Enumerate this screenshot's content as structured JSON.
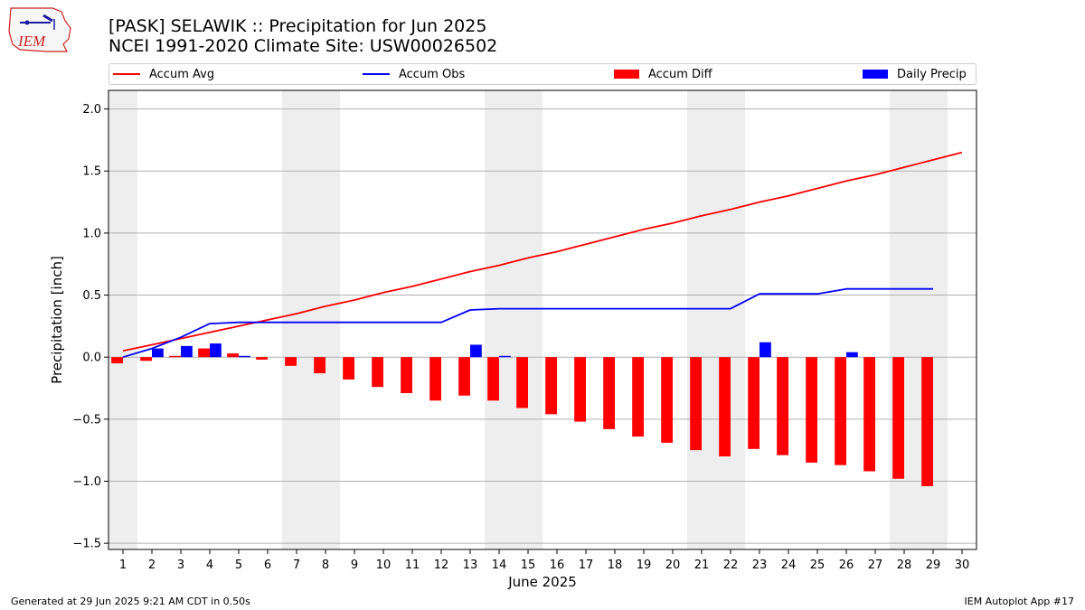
{
  "header": {
    "title_line1": "[PASK] SELAWIK :: Precipitation for Jun 2025",
    "title_line2": "NCEI 1991-2020 Climate Site: USW00026502"
  },
  "logo": {
    "text": "IEM"
  },
  "footer": {
    "left": "Generated at 29 Jun 2025 9:21 AM CDT in 0.50s",
    "right": "IEM Autoplot App #17"
  },
  "colors": {
    "avg": "#ff0000",
    "obs": "#0000ff",
    "diff": "#ff0000",
    "daily": "#0000ff",
    "weekend_shade": "#eeeeee",
    "grid": "#b0b0b0"
  },
  "chart_data": {
    "type": "bar",
    "xlabel": "June 2025",
    "ylabel": "Precipitation [inch]",
    "xlim": [
      0.5,
      30.5
    ],
    "ylim": [
      -1.55,
      2.15
    ],
    "yticks": [
      -1.5,
      -1.0,
      -0.5,
      0.0,
      0.5,
      1.0,
      1.5,
      2.0
    ],
    "ytick_labels": [
      "−1.5",
      "−1.0",
      "−0.5",
      "0.0",
      "0.5",
      "1.0",
      "1.5",
      "2.0"
    ],
    "x": [
      1,
      2,
      3,
      4,
      5,
      6,
      7,
      8,
      9,
      10,
      11,
      12,
      13,
      14,
      15,
      16,
      17,
      18,
      19,
      20,
      21,
      22,
      23,
      24,
      25,
      26,
      27,
      28,
      29,
      30
    ],
    "grid": "horizontal",
    "legend_position": "top",
    "shaded_days": [
      [
        0.5,
        1.5
      ],
      [
        6.5,
        8.5
      ],
      [
        13.5,
        15.5
      ],
      [
        20.5,
        22.5
      ],
      [
        27.5,
        29.5
      ]
    ],
    "series": [
      {
        "name": "Accum Avg",
        "kind": "line",
        "x": [
          1,
          2,
          3,
          4,
          5,
          6,
          7,
          8,
          9,
          10,
          11,
          12,
          13,
          14,
          15,
          16,
          17,
          18,
          19,
          20,
          21,
          22,
          23,
          24,
          25,
          26,
          27,
          28,
          29,
          30
        ],
        "values": [
          0.05,
          0.1,
          0.15,
          0.2,
          0.25,
          0.3,
          0.35,
          0.41,
          0.46,
          0.52,
          0.57,
          0.63,
          0.69,
          0.74,
          0.8,
          0.85,
          0.91,
          0.97,
          1.03,
          1.08,
          1.14,
          1.19,
          1.25,
          1.3,
          1.36,
          1.42,
          1.47,
          1.53,
          1.59,
          1.65
        ]
      },
      {
        "name": "Accum Obs",
        "kind": "line",
        "x": [
          1,
          2,
          3,
          4,
          5,
          6,
          7,
          8,
          9,
          10,
          11,
          12,
          13,
          14,
          15,
          16,
          17,
          18,
          19,
          20,
          21,
          22,
          23,
          24,
          25,
          26,
          27,
          28,
          29
        ],
        "values": [
          0.0,
          0.07,
          0.16,
          0.27,
          0.28,
          0.28,
          0.28,
          0.28,
          0.28,
          0.28,
          0.28,
          0.28,
          0.38,
          0.39,
          0.39,
          0.39,
          0.39,
          0.39,
          0.39,
          0.39,
          0.39,
          0.39,
          0.51,
          0.51,
          0.51,
          0.55,
          0.55,
          0.55,
          0.55
        ]
      },
      {
        "name": "Accum Diff",
        "kind": "bar",
        "x": [
          1,
          2,
          3,
          4,
          5,
          6,
          7,
          8,
          9,
          10,
          11,
          12,
          13,
          14,
          15,
          16,
          17,
          18,
          19,
          20,
          21,
          22,
          23,
          24,
          25,
          26,
          27,
          28,
          29
        ],
        "values": [
          -0.05,
          -0.03,
          0.01,
          0.07,
          0.03,
          -0.02,
          -0.07,
          -0.13,
          -0.18,
          -0.24,
          -0.29,
          -0.35,
          -0.31,
          -0.35,
          -0.41,
          -0.46,
          -0.52,
          -0.58,
          -0.64,
          -0.69,
          -0.75,
          -0.8,
          -0.74,
          -0.79,
          -0.85,
          -0.87,
          -0.92,
          -0.98,
          -1.04
        ]
      },
      {
        "name": "Daily Precip",
        "kind": "bar",
        "x": [
          1,
          2,
          3,
          4,
          5,
          6,
          7,
          8,
          9,
          10,
          11,
          12,
          13,
          14,
          15,
          16,
          17,
          18,
          19,
          20,
          21,
          22,
          23,
          24,
          25,
          26,
          27,
          28,
          29
        ],
        "values": [
          0.0,
          0.07,
          0.09,
          0.11,
          0.01,
          0.0,
          0.0,
          0.0,
          0.0,
          0.0,
          0.0,
          0.0,
          0.1,
          0.01,
          0.0,
          0.0,
          0.0,
          0.0,
          0.0,
          0.0,
          0.0,
          0.0,
          0.12,
          0.0,
          0.0,
          0.04,
          0.0,
          0.0,
          0.0
        ]
      }
    ]
  }
}
